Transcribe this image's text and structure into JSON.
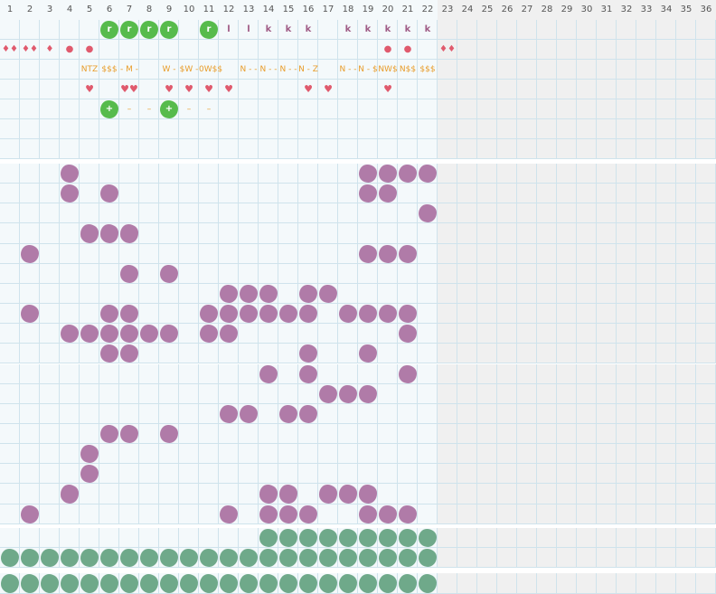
{
  "columns": [
    "1",
    "2",
    "3",
    "4",
    "5",
    "6",
    "7",
    "8",
    "9",
    "10",
    "11",
    "12",
    "13",
    "14",
    "15",
    "16",
    "17",
    "18",
    "19",
    "20",
    "21",
    "22",
    "23",
    "24",
    "25",
    "26",
    "27",
    "28",
    "29",
    "30",
    "31",
    "32",
    "33",
    "34",
    "35",
    "36"
  ],
  "colors": {
    "grid_line": "#cfe3ec",
    "cell_bg_active": "#f4f9fb",
    "cell_bg_inactive": "#f0f0f0",
    "purple_blob": "#b07ba8",
    "green_blob": "#6fa98a",
    "bright_green": "#57bb4c",
    "pink_glyph": "#a05c86",
    "red_glyph": "#e05a6d",
    "orange_glyph": "#e89c2a"
  },
  "top_rows": {
    "row1_green_r": {
      "glyph": "r",
      "cols": [
        6,
        7,
        8,
        9,
        11
      ]
    },
    "row1_pink": [
      {
        "col": 12,
        "text": "l"
      },
      {
        "col": 13,
        "text": "l"
      },
      {
        "col": 14,
        "text": "k"
      },
      {
        "col": 15,
        "text": "k"
      },
      {
        "col": 16,
        "text": "k"
      },
      {
        "col": 18,
        "text": "k"
      },
      {
        "col": 19,
        "text": "k"
      },
      {
        "col": 20,
        "text": "k"
      },
      {
        "col": 21,
        "text": "k"
      },
      {
        "col": 22,
        "text": "k"
      }
    ],
    "row2_red": [
      {
        "col": 1,
        "text": "♦♦"
      },
      {
        "col": 2,
        "text": "♦♦"
      },
      {
        "col": 3,
        "text": "♦"
      },
      {
        "col": 4,
        "text": "●"
      },
      {
        "col": 5,
        "text": "●"
      },
      {
        "col": 20,
        "text": "●"
      },
      {
        "col": 21,
        "text": "●"
      },
      {
        "col": 23,
        "text": "♦♦"
      }
    ],
    "row3_orange": [
      {
        "col": 5,
        "text": "NTZ"
      },
      {
        "col": 6,
        "text": "$$$"
      },
      {
        "col": 7,
        "text": "- M -"
      },
      {
        "col": 9,
        "text": "W -"
      },
      {
        "col": 10,
        "text": "$W -"
      },
      {
        "col": 11,
        "text": "0W$$"
      },
      {
        "col": 13,
        "text": "N - -"
      },
      {
        "col": 14,
        "text": "N - -"
      },
      {
        "col": 15,
        "text": "N - -"
      },
      {
        "col": 16,
        "text": "N - Z"
      },
      {
        "col": 18,
        "text": "N - -"
      },
      {
        "col": 19,
        "text": "N - $"
      },
      {
        "col": 20,
        "text": "NW$"
      },
      {
        "col": 21,
        "text": "N$$"
      },
      {
        "col": 22,
        "text": "$$$"
      }
    ],
    "row4_hearts": [
      {
        "col": 5,
        "text": "♥"
      },
      {
        "col": 7,
        "text": "♥♥"
      },
      {
        "col": 9,
        "text": "♥"
      },
      {
        "col": 10,
        "text": "♥"
      },
      {
        "col": 11,
        "text": "♥"
      },
      {
        "col": 12,
        "text": "♥"
      },
      {
        "col": 16,
        "text": "♥"
      },
      {
        "col": 17,
        "text": "♥"
      },
      {
        "col": 20,
        "text": "♥"
      }
    ],
    "row5_mixed": [
      {
        "col": 6,
        "text": "+",
        "kind": "green"
      },
      {
        "col": 7,
        "text": "–",
        "kind": "orange"
      },
      {
        "col": 8,
        "text": "–",
        "kind": "orange"
      },
      {
        "col": 9,
        "text": "+",
        "kind": "green"
      },
      {
        "col": 10,
        "text": "–",
        "kind": "orange"
      },
      {
        "col": 11,
        "text": "–",
        "kind": "orange"
      }
    ]
  },
  "middle_purple_blobs": [
    [
      4,
      19,
      20,
      21,
      22
    ],
    [
      4,
      6,
      19,
      20
    ],
    [
      22
    ],
    [
      5,
      6,
      7
    ],
    [
      2,
      19,
      20,
      21
    ],
    [
      7,
      9
    ],
    [
      12,
      13,
      14,
      16,
      17
    ],
    [
      2,
      6,
      7,
      11,
      12,
      13,
      14,
      15,
      16,
      18,
      19,
      20,
      21
    ],
    [
      4,
      5,
      6,
      7,
      8,
      9,
      11,
      12,
      21
    ],
    [
      6,
      7,
      16,
      19
    ],
    [
      14,
      16,
      21
    ],
    [
      17,
      18,
      19
    ],
    [
      12,
      13,
      15,
      16
    ],
    [
      6,
      7,
      9
    ],
    [
      5
    ],
    [
      5
    ],
    [
      4,
      14,
      15,
      17,
      18,
      19
    ],
    [
      2,
      12,
      14,
      15,
      16,
      19,
      20,
      21
    ]
  ],
  "bottom_green_rows": [
    [
      14,
      15,
      16,
      17,
      18,
      19,
      20,
      21,
      22
    ],
    [
      1,
      2,
      3,
      4,
      5,
      6,
      7,
      8,
      9,
      10,
      11,
      12,
      13,
      14,
      15,
      16,
      17,
      18,
      19,
      20,
      21,
      22
    ],
    [
      1,
      2,
      3,
      4,
      5,
      6,
      7,
      8,
      9,
      10,
      11,
      12,
      13,
      14,
      15,
      16,
      17,
      18,
      19,
      20,
      21,
      22
    ]
  ]
}
